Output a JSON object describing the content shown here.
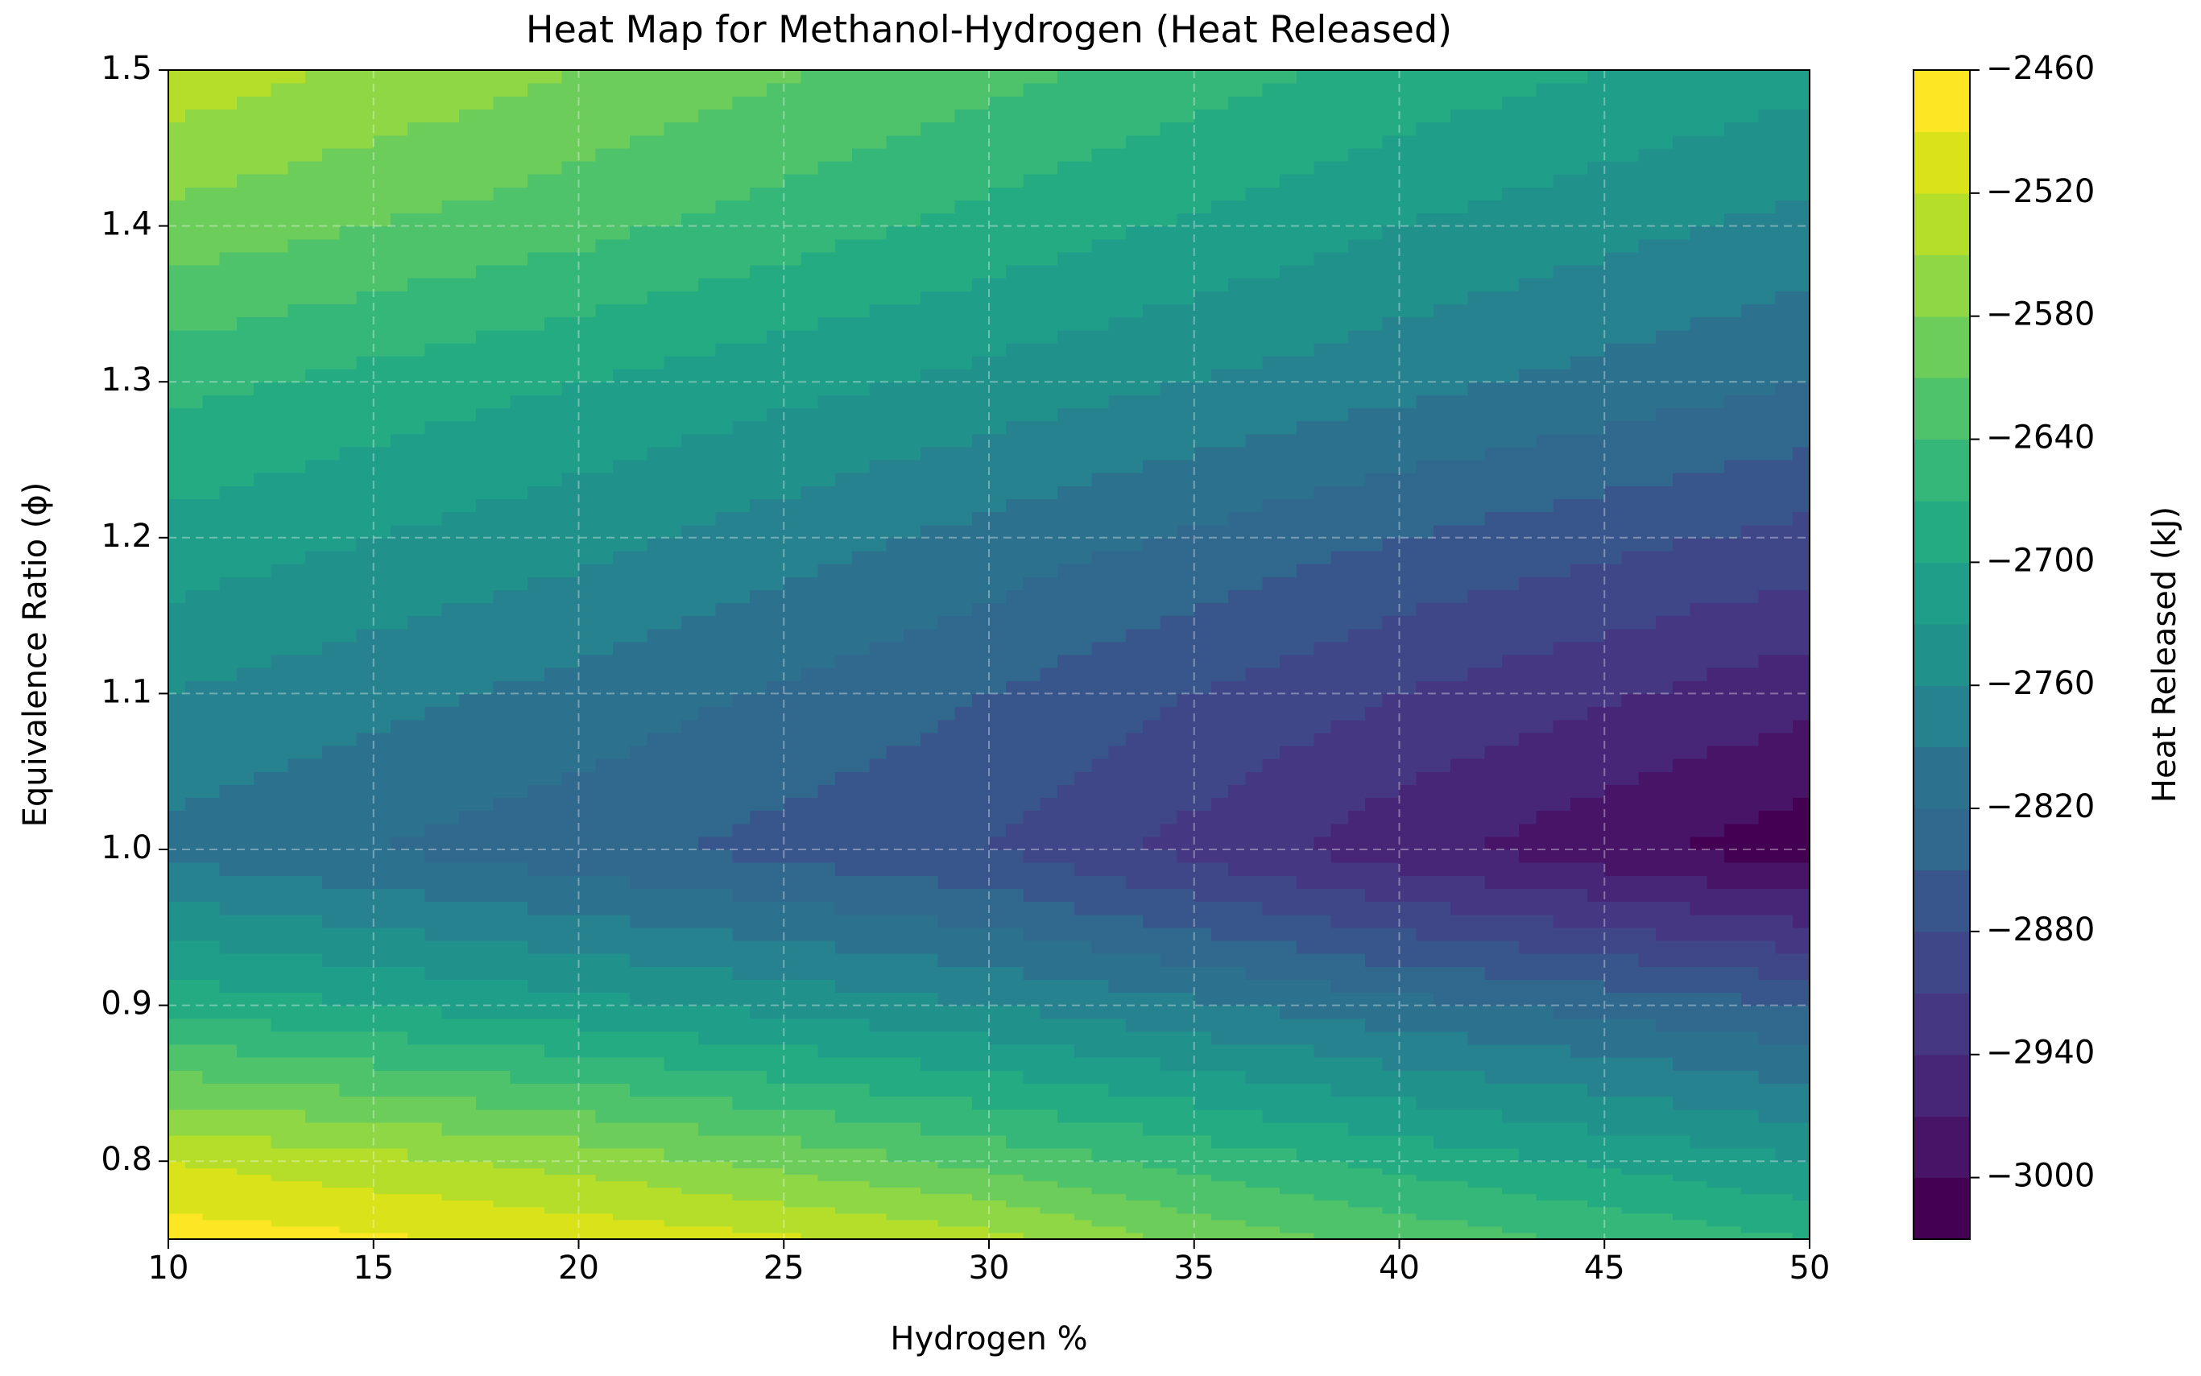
{
  "chart_data": {
    "type": "contourf",
    "title": "Heat Map for Methanol-Hydrogen (Heat Released)",
    "xlabel": "Hydrogen %",
    "ylabel": "Equivalence Ratio (ϕ)",
    "colorbar_label": "Heat Released (kJ)",
    "x": [
      10,
      15,
      20,
      25,
      30,
      35,
      40,
      45,
      50
    ],
    "y": [
      0.75,
      0.8,
      0.9,
      1.0,
      1.1,
      1.2,
      1.3,
      1.4,
      1.5
    ],
    "z": [
      [
        -2475,
        -2485,
        -2500,
        -2515,
        -2540,
        -2590,
        -2620,
        -2645,
        -2670
      ],
      [
        -2520,
        -2540,
        -2560,
        -2590,
        -2620,
        -2650,
        -2680,
        -2705,
        -2730
      ],
      [
        -2680,
        -2700,
        -2720,
        -2740,
        -2760,
        -2785,
        -2810,
        -2830,
        -2850
      ],
      [
        -2800,
        -2820,
        -2840,
        -2860,
        -2880,
        -2920,
        -2960,
        -2990,
        -3020
      ],
      [
        -2760,
        -2780,
        -2800,
        -2825,
        -2850,
        -2880,
        -2910,
        -2935,
        -2960
      ],
      [
        -2710,
        -2730,
        -2750,
        -2775,
        -2800,
        -2825,
        -2850,
        -2870,
        -2890
      ],
      [
        -2660,
        -2680,
        -2700,
        -2720,
        -2740,
        -2760,
        -2780,
        -2800,
        -2820
      ],
      [
        -2590,
        -2610,
        -2630,
        -2655,
        -2680,
        -2705,
        -2730,
        -2750,
        -2770
      ],
      [
        -2530,
        -2555,
        -2580,
        -2605,
        -2630,
        -2655,
        -2680,
        -2700,
        -2720
      ]
    ],
    "levels": [
      -3030,
      -3000,
      -2970,
      -2940,
      -2910,
      -2880,
      -2850,
      -2820,
      -2790,
      -2760,
      -2730,
      -2700,
      -2670,
      -2640,
      -2610,
      -2580,
      -2550,
      -2520,
      -2490,
      -2460
    ],
    "colors": [
      "#440154",
      "#481467",
      "#482677",
      "#453781",
      "#3f4788",
      "#39568c",
      "#31688e",
      "#2c728e",
      "#26828e",
      "#21918c",
      "#1f9e89",
      "#25ab82",
      "#35b779",
      "#4ec36b",
      "#6ccd5a",
      "#8fd744",
      "#b5de2b",
      "#dae319",
      "#fde725"
    ],
    "colormap": "viridis",
    "xlim": [
      10,
      50
    ],
    "ylim": [
      0.75,
      1.5
    ],
    "zlim": [
      -3030,
      -2460
    ],
    "xticks": [
      10,
      15,
      20,
      25,
      30,
      35,
      40,
      45,
      50
    ],
    "yticks": [
      0.8,
      0.9,
      {
        "value": 1,
        "label": "1.0"
      },
      1.1,
      1.2,
      1.3,
      1.4,
      1.5
    ],
    "zticks": [
      {
        "value": -3000,
        "label": "−3000"
      },
      {
        "value": -2940,
        "label": "−2940"
      },
      {
        "value": -2880,
        "label": "−2880"
      },
      {
        "value": -2820,
        "label": "−2820"
      },
      {
        "value": -2760,
        "label": "−2760"
      },
      {
        "value": -2700,
        "label": "−2700"
      },
      {
        "value": -2640,
        "label": "−2640"
      },
      {
        "value": -2580,
        "label": "−2580"
      },
      {
        "value": -2520,
        "label": "−2520"
      },
      {
        "value": -2460,
        "label": "−2460"
      }
    ],
    "grid": true
  }
}
